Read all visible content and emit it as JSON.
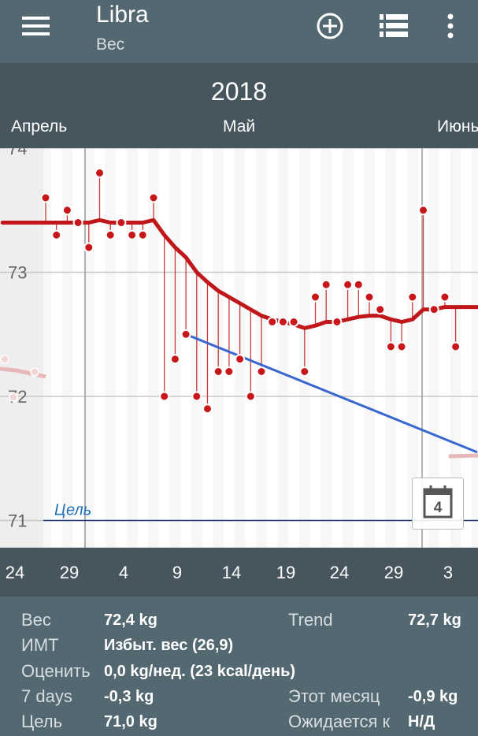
{
  "app": {
    "title": "Libra",
    "subtitle": "Вес"
  },
  "toolbar": {
    "menu_icon": "hamburger-menu-icon",
    "add_icon": "add-circle-icon",
    "list_icon": "list-icon",
    "overflow_icon": "more-vert-icon"
  },
  "header": {
    "year": "2018",
    "months": [
      "Апрель",
      "Май",
      "Июнь"
    ]
  },
  "chart_data": {
    "type": "line",
    "yticks": [
      74,
      73,
      72,
      71
    ],
    "ylim": [
      70.8,
      74.1
    ],
    "xticks": [
      "24",
      "29",
      "4",
      "9",
      "14",
      "19",
      "24",
      "29",
      "3"
    ],
    "goal": {
      "label": "Цель",
      "value": 71.0
    },
    "measurements": [
      {
        "d": 0,
        "w": 73.6
      },
      {
        "d": 1,
        "w": 73.3
      },
      {
        "d": 2,
        "w": 73.5
      },
      {
        "d": 3,
        "w": 73.4
      },
      {
        "d": 4,
        "w": 73.2
      },
      {
        "d": 5,
        "w": 73.8
      },
      {
        "d": 6,
        "w": 73.3
      },
      {
        "d": 7,
        "w": 73.4
      },
      {
        "d": 8,
        "w": 73.3
      },
      {
        "d": 9,
        "w": 73.3
      },
      {
        "d": 10,
        "w": 73.6
      },
      {
        "d": 11,
        "w": 72.0
      },
      {
        "d": 12,
        "w": 72.3
      },
      {
        "d": 13,
        "w": 72.5
      },
      {
        "d": 14,
        "w": 72.0
      },
      {
        "d": 15,
        "w": 71.9
      },
      {
        "d": 16,
        "w": 72.2
      },
      {
        "d": 17,
        "w": 72.2
      },
      {
        "d": 18,
        "w": 72.3
      },
      {
        "d": 19,
        "w": 72.0
      },
      {
        "d": 20,
        "w": 72.2
      },
      {
        "d": 21,
        "w": 72.6
      },
      {
        "d": 22,
        "w": 72.6
      },
      {
        "d": 23,
        "w": 72.6
      },
      {
        "d": 24,
        "w": 72.2
      },
      {
        "d": 25,
        "w": 72.8
      },
      {
        "d": 26,
        "w": 72.9
      },
      {
        "d": 27,
        "w": 72.6
      },
      {
        "d": 28,
        "w": 72.9
      },
      {
        "d": 29,
        "w": 72.9
      },
      {
        "d": 30,
        "w": 72.8
      },
      {
        "d": 31,
        "w": 72.7
      },
      {
        "d": 32,
        "w": 72.4
      },
      {
        "d": 33,
        "w": 72.4
      },
      {
        "d": 34,
        "w": 72.8
      },
      {
        "d": 35,
        "w": 73.5
      },
      {
        "d": 36,
        "w": 72.7
      },
      {
        "d": 37,
        "w": 72.8
      },
      {
        "d": 38,
        "w": 72.4
      }
    ],
    "trend": [
      {
        "d": -4,
        "w": 73.4
      },
      {
        "d": 0,
        "w": 73.4
      },
      {
        "d": 1,
        "w": 73.4
      },
      {
        "d": 2,
        "w": 73.4
      },
      {
        "d": 3,
        "w": 73.4
      },
      {
        "d": 4,
        "w": 73.4
      },
      {
        "d": 5,
        "w": 73.42
      },
      {
        "d": 6,
        "w": 73.4
      },
      {
        "d": 7,
        "w": 73.4
      },
      {
        "d": 8,
        "w": 73.4
      },
      {
        "d": 9,
        "w": 73.4
      },
      {
        "d": 10,
        "w": 73.42
      },
      {
        "d": 11,
        "w": 73.3
      },
      {
        "d": 12,
        "w": 73.2
      },
      {
        "d": 13,
        "w": 73.12
      },
      {
        "d": 14,
        "w": 73.0
      },
      {
        "d": 15,
        "w": 72.92
      },
      {
        "d": 16,
        "w": 72.85
      },
      {
        "d": 17,
        "w": 72.8
      },
      {
        "d": 18,
        "w": 72.75
      },
      {
        "d": 19,
        "w": 72.7
      },
      {
        "d": 20,
        "w": 72.65
      },
      {
        "d": 21,
        "w": 72.62
      },
      {
        "d": 22,
        "w": 72.6
      },
      {
        "d": 23,
        "w": 72.58
      },
      {
        "d": 24,
        "w": 72.55
      },
      {
        "d": 25,
        "w": 72.57
      },
      {
        "d": 26,
        "w": 72.6
      },
      {
        "d": 27,
        "w": 72.6
      },
      {
        "d": 28,
        "w": 72.62
      },
      {
        "d": 29,
        "w": 72.64
      },
      {
        "d": 30,
        "w": 72.65
      },
      {
        "d": 31,
        "w": 72.65
      },
      {
        "d": 32,
        "w": 72.62
      },
      {
        "d": 33,
        "w": 72.6
      },
      {
        "d": 34,
        "w": 72.62
      },
      {
        "d": 35,
        "w": 72.7
      },
      {
        "d": 36,
        "w": 72.7
      },
      {
        "d": 37,
        "w": 72.72
      },
      {
        "d": 38,
        "w": 72.72
      },
      {
        "d": 40,
        "w": 72.72
      },
      {
        "d": 42,
        "w": 72.72
      }
    ],
    "forecast": [
      {
        "d": 13,
        "w": 72.5
      },
      {
        "d": 40,
        "w": 71.55
      }
    ]
  },
  "calendar_button": {
    "day": "4",
    "icon": "calendar-icon"
  },
  "stats": {
    "weight_label": "Вес",
    "weight_value": "72,4 kg",
    "trend_label": "Trend",
    "trend_value": "72,7 kg",
    "bmi_label": "ИМТ",
    "bmi_value": "Избыт. вес (26,9)",
    "estimate_label": "Оценить",
    "estimate_value": "0,0 kg/нед. (23 kcal/день)",
    "days_label": "7 days",
    "days_value": "-0,3 kg",
    "month_label": "Этот месяц",
    "month_value": "-0,9 kg",
    "goal_label": "Цель",
    "goal_value": "71,0 kg",
    "expected_label": "Ожидается к",
    "expected_value": "Н/Д"
  }
}
